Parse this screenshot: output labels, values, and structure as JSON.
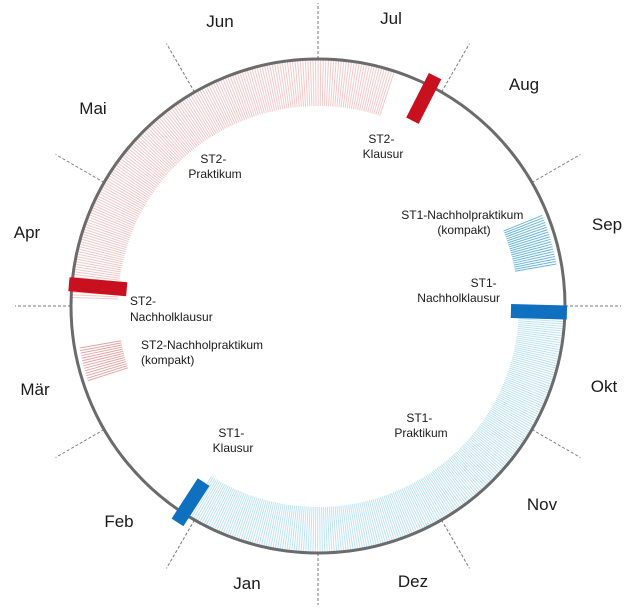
{
  "months": [
    "Jan",
    "Feb",
    "Mär",
    "Apr",
    "Mai",
    "Jun",
    "Jul",
    "Aug",
    "Sep",
    "Okt",
    "Nov",
    "Dez"
  ],
  "colors": {
    "st2_red": "#c8101e",
    "st2_hatch": "#e8a3a3",
    "st2_hatch_light": "#f2c9c9",
    "st1_blue": "#1070c0",
    "st1_hatch": "#68b6de",
    "st1_hatch_light": "#bfe3f0",
    "ring": "#6b6b6b",
    "tick": "#777777"
  },
  "events": {
    "st2_klausur": {
      "line1": "ST2-",
      "line2": "Klausur"
    },
    "st2_praktikum": {
      "line1": "ST2-",
      "line2": "Praktikum"
    },
    "st2_nachholklausur": {
      "line1": "ST2-",
      "line2": "Nachholklausur"
    },
    "st2_nachholpraktikum": {
      "line1": "ST2-Nachholpraktikum",
      "line2": "(kompakt)"
    },
    "st1_nachholpraktikum": {
      "line1": "ST1-Nachholpraktikum",
      "line2": "(kompakt)"
    },
    "st1_nachholklausur": {
      "line1": "ST1-",
      "line2": "Nachholklausur"
    },
    "st1_praktikum": {
      "line1": "ST1-",
      "line2": "Praktikum"
    },
    "st1_klausur": {
      "line1": "ST1-",
      "line2": "Klausur"
    }
  }
}
